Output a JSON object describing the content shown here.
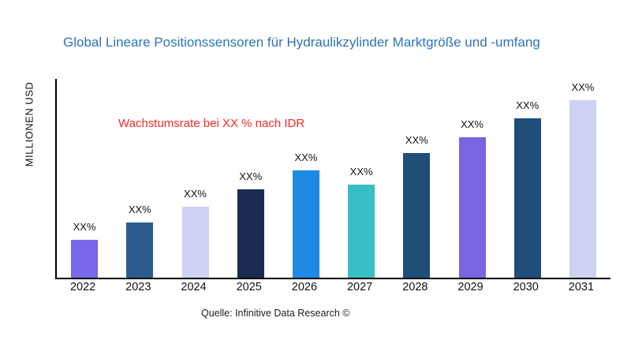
{
  "chart_data": {
    "type": "bar",
    "title": "Global Lineare Positionssensoren für Hydraulikzylinder Marktgröße und -umfang",
    "ylabel": "MILLIONEN USD",
    "annotation": "Wachstumsrate bei XX % nach IDR",
    "source": "Quelle: Infinitive Data Research ©",
    "categories": [
      "2022",
      "2023",
      "2024",
      "2025",
      "2026",
      "2027",
      "2028",
      "2029",
      "2030",
      "2031"
    ],
    "values": [
      50,
      72,
      93,
      116,
      140,
      122,
      163,
      184,
      208,
      232
    ],
    "bar_labels": [
      "XX%",
      "XX%",
      "XX%",
      "XX%",
      "XX%",
      "XX%",
      "XX%",
      "XX%",
      "XX%",
      "XX%"
    ],
    "bar_colors": [
      "#7668e8",
      "#2d5d8e",
      "#cdd1f2",
      "#1b2a52",
      "#1e88e5",
      "#39bec6",
      "#1f4e79",
      "#7a64e0",
      "#1f4e79",
      "#cdd1f2"
    ],
    "ylim": [
      0,
      260
    ],
    "grid": false,
    "legend": false,
    "title_color": "#2E74B5",
    "annotation_color": "#f32b2b",
    "axis_color": "#000000"
  }
}
